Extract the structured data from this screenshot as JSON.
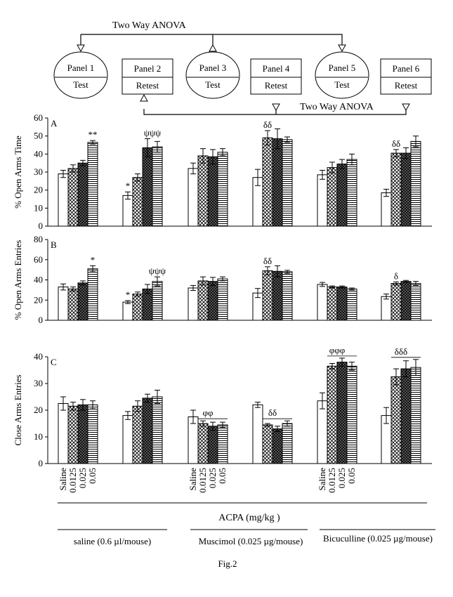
{
  "schematic": {
    "anova_label_top": "Two Way ANOVA",
    "anova_label_bottom": "Two Way ANOVA",
    "panels": [
      {
        "title": "Panel 1",
        "phase": "Test",
        "shape": "ellipse"
      },
      {
        "title": "Panel 2",
        "phase": "Retest",
        "shape": "rect"
      },
      {
        "title": "Panel 3",
        "phase": "Test",
        "shape": "ellipse"
      },
      {
        "title": "Panel 4",
        "phase": "Retest",
        "shape": "rect"
      },
      {
        "title": "Panel 5",
        "phase": "Test",
        "shape": "ellipse"
      },
      {
        "title": "Panel 6",
        "phase": "Retest",
        "shape": "rect"
      }
    ]
  },
  "chart_data": [
    {
      "type": "bar",
      "panel_letter": "A",
      "ylabel": "% Open Arms Time",
      "ylim": [
        0,
        60
      ],
      "yticks": [
        0,
        10,
        20,
        30,
        40,
        50,
        60
      ],
      "doses": [
        "Saline",
        "0.0125",
        "0.025",
        "0.05"
      ],
      "groups": [
        {
          "values": [
            29,
            32,
            35,
            46.5
          ],
          "errors": [
            2,
            2,
            1.5,
            1
          ],
          "marks": [
            {
              "bar": 3,
              "text": "**"
            }
          ]
        },
        {
          "values": [
            17,
            27,
            43.5,
            44
          ],
          "errors": [
            2,
            2,
            5,
            3
          ],
          "marks": [
            {
              "bar": 0,
              "text": "*"
            },
            {
              "bar": 2.5,
              "text": "ψψψ"
            }
          ]
        },
        {
          "values": [
            32,
            39,
            38.5,
            41
          ],
          "errors": [
            3,
            4,
            4,
            2
          ],
          "marks": []
        },
        {
          "values": [
            27,
            49,
            48.5,
            48
          ],
          "errors": [
            4.5,
            4,
            5.5,
            1.5
          ],
          "marks": [
            {
              "bar": 1,
              "text": "δδ"
            }
          ]
        },
        {
          "values": [
            28.5,
            32.5,
            34.5,
            37
          ],
          "errors": [
            2.5,
            3,
            2.5,
            3
          ],
          "marks": []
        },
        {
          "values": [
            18.5,
            40.5,
            40.5,
            47
          ],
          "errors": [
            2,
            2,
            3,
            3
          ],
          "marks": [
            {
              "bar": 1,
              "text": "δδ"
            }
          ]
        }
      ]
    },
    {
      "type": "bar",
      "panel_letter": "B",
      "ylabel": "% Open Arms Entries",
      "ylim": [
        0,
        80
      ],
      "yticks": [
        0,
        20,
        40,
        60,
        80
      ],
      "doses": [
        "Saline",
        "0.0125",
        "0.025",
        "0.05"
      ],
      "groups": [
        {
          "values": [
            33,
            31,
            37,
            51
          ],
          "errors": [
            3,
            2,
            2,
            3
          ],
          "marks": [
            {
              "bar": 3,
              "text": "*"
            }
          ]
        },
        {
          "values": [
            18,
            26,
            31,
            38.5
          ],
          "errors": [
            1.5,
            2,
            4.5,
            4.5
          ],
          "marks": [
            {
              "bar": 0,
              "text": "*"
            },
            {
              "bar": 3,
              "text": "ψψψ"
            }
          ]
        },
        {
          "values": [
            32,
            39,
            38.5,
            41
          ],
          "errors": [
            2.5,
            4,
            4,
            2
          ],
          "marks": []
        },
        {
          "values": [
            27,
            49,
            48.5,
            48
          ],
          "errors": [
            4.5,
            4,
            5.5,
            1.5
          ],
          "marks": [
            {
              "bar": 1,
              "text": "δδ"
            }
          ]
        },
        {
          "values": [
            35.5,
            33,
            33,
            31
          ],
          "errors": [
            2,
            1,
            1,
            1
          ],
          "marks": []
        },
        {
          "values": [
            23.5,
            36.5,
            38.5,
            36.5
          ],
          "errors": [
            2.5,
            1.5,
            1,
            2
          ],
          "marks": [
            {
              "bar": 1,
              "text": "δ"
            }
          ]
        }
      ]
    },
    {
      "type": "bar",
      "panel_letter": "C",
      "ylabel": "Close Arms Entries",
      "ylim": [
        0,
        40
      ],
      "yticks": [
        0,
        10,
        20,
        30,
        40
      ],
      "doses": [
        "Saline",
        "0.0125",
        "0.025",
        "0.05"
      ],
      "groups": [
        {
          "values": [
            22.5,
            21.5,
            22,
            22
          ],
          "errors": [
            2.5,
            1.5,
            2,
            1.5
          ],
          "marks": []
        },
        {
          "values": [
            18,
            21.5,
            24.5,
            25
          ],
          "errors": [
            1.5,
            2,
            1.5,
            2.5
          ],
          "marks": []
        },
        {
          "values": [
            17.5,
            15,
            14,
            14.5
          ],
          "errors": [
            2.5,
            1,
            1.5,
            1
          ],
          "marks": [
            {
              "bar": 1.5,
              "text": "φφ",
              "line": true
            }
          ]
        },
        {
          "values": [
            22,
            14.5,
            13,
            15
          ],
          "errors": [
            1,
            0.5,
            1,
            1
          ],
          "marks": [
            {
              "bar": 1.5,
              "text": "δδ",
              "line": true
            }
          ]
        },
        {
          "values": [
            23.5,
            36.5,
            38,
            36.5
          ],
          "errors": [
            3,
            1,
            1.5,
            1.5
          ],
          "marks": [
            {
              "bar": 1.5,
              "text": "φφφ",
              "line": true
            }
          ]
        },
        {
          "values": [
            18,
            32.5,
            35.5,
            36
          ],
          "errors": [
            3,
            3,
            3,
            3
          ],
          "marks": [
            {
              "bar": 1.5,
              "text": "δδδ",
              "line": true
            }
          ]
        }
      ]
    }
  ],
  "xaxis": {
    "tick_labels": [
      "Saline",
      "0.0125",
      "0.025",
      "0.05"
    ],
    "acpa_label": "ACPA (mg/kg )",
    "treatment_labels": [
      "saline (0.6 µl/mouse)",
      "Muscimol (0.025 µg/mouse)",
      "Bicuculline (0.025 µg/mouse)"
    ]
  },
  "caption": "Fig.2"
}
